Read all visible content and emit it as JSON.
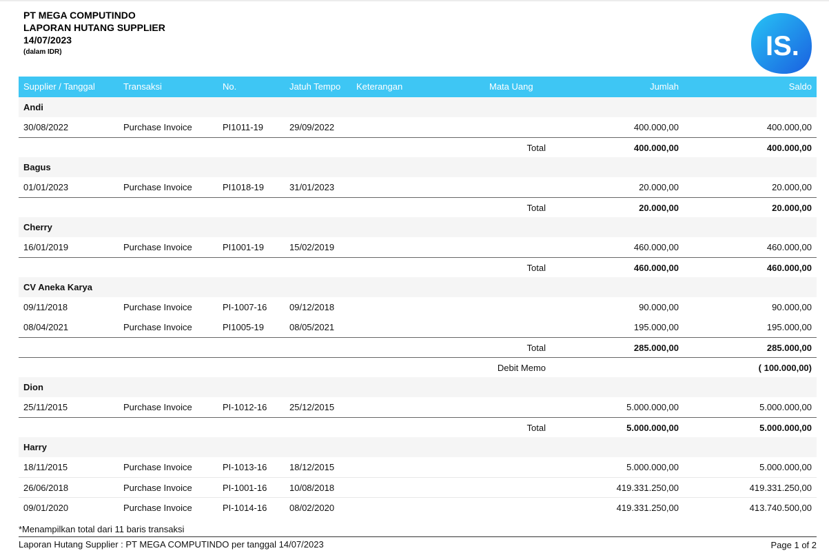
{
  "header": {
    "company": "PT MEGA COMPUTINDO",
    "report_title": "LAPORAN HUTANG SUPPLIER",
    "date": "14/07/2023",
    "currency_note": "(dalam IDR)"
  },
  "logo": {
    "text": "IS.",
    "color_top": "#27c4f5",
    "color_bottom": "#1a5fe0"
  },
  "colors": {
    "header_bg": "#3ec6f4",
    "group_bg": "#f5f5f5"
  },
  "columns": {
    "supplier_date": "Supplier / Tanggal",
    "transaction": "Transaksi",
    "no": "No.",
    "due": "Jatuh Tempo",
    "description": "Keterangan",
    "currency": "Mata Uang",
    "amount": "Jumlah",
    "balance": "Saldo"
  },
  "groups": [
    {
      "name": "Andi",
      "rows": [
        {
          "date": "30/08/2022",
          "trx": "Purchase Invoice",
          "no": "PI1011-19",
          "due": "29/09/2022",
          "amount": "400.000,00",
          "balance": "400.000,00"
        }
      ],
      "total_label": "Total",
      "total_amount": "400.000,00",
      "total_balance": "400.000,00"
    },
    {
      "name": "Bagus",
      "rows": [
        {
          "date": "01/01/2023",
          "trx": "Purchase Invoice",
          "no": "PI1018-19",
          "due": "31/01/2023",
          "amount": "20.000,00",
          "balance": "20.000,00"
        }
      ],
      "total_label": "Total",
      "total_amount": "20.000,00",
      "total_balance": "20.000,00"
    },
    {
      "name": "Cherry",
      "rows": [
        {
          "date": "16/01/2019",
          "trx": "Purchase Invoice",
          "no": "PI1001-19",
          "due": "15/02/2019",
          "amount": "460.000,00",
          "balance": "460.000,00"
        }
      ],
      "total_label": "Total",
      "total_amount": "460.000,00",
      "total_balance": "460.000,00"
    },
    {
      "name": "CV Aneka Karya",
      "rows": [
        {
          "date": "09/11/2018",
          "trx": "Purchase Invoice",
          "no": "PI-1007-16",
          "due": "09/12/2018",
          "amount": "90.000,00",
          "balance": "90.000,00"
        },
        {
          "date": "08/04/2021",
          "trx": "Purchase Invoice",
          "no": "PI1005-19",
          "due": "08/05/2021",
          "amount": "195.000,00",
          "balance": "195.000,00"
        }
      ],
      "total_label": "Total",
      "total_amount": "285.000,00",
      "total_balance": "285.000,00",
      "debit_memo_label": "Debit Memo",
      "debit_memo_balance": "( 100.000,00)"
    },
    {
      "name": "Dion",
      "rows": [
        {
          "date": "25/11/2015",
          "trx": "Purchase Invoice",
          "no": "PI-1012-16",
          "due": "25/12/2015",
          "amount": "5.000.000,00",
          "balance": "5.000.000,00"
        }
      ],
      "total_label": "Total",
      "total_amount": "5.000.000,00",
      "total_balance": "5.000.000,00"
    },
    {
      "name": "Harry",
      "rows": [
        {
          "date": "18/11/2015",
          "trx": "Purchase Invoice",
          "no": "PI-1013-16",
          "due": "18/12/2015",
          "amount": "5.000.000,00",
          "balance": "5.000.000,00"
        },
        {
          "date": "26/06/2018",
          "trx": "Purchase Invoice",
          "no": "PI-1001-16",
          "due": "10/08/2018",
          "amount": "419.331.250,00",
          "balance": "419.331.250,00"
        },
        {
          "date": "09/01/2020",
          "trx": "Purchase Invoice",
          "no": "PI-1014-16",
          "due": "08/02/2020",
          "amount": "419.331.250,00",
          "balance": "413.740.500,00"
        }
      ]
    }
  ],
  "note": "*Menampilkan total dari 11 baris transaksi",
  "footer": {
    "left": "Laporan Hutang Supplier : PT MEGA COMPUTINDO per tanggal 14/07/2023",
    "page": "Page 1 of 2"
  }
}
